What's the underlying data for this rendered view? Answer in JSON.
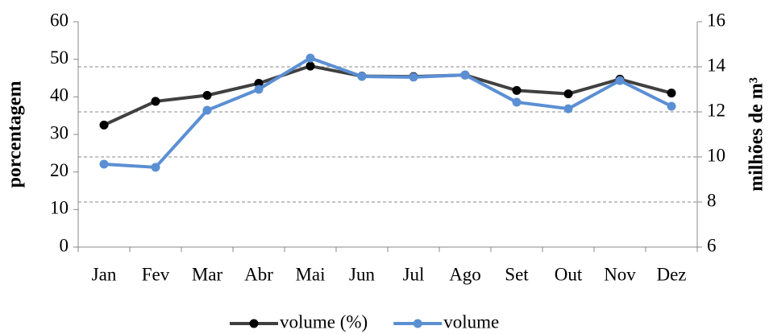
{
  "chart_data": {
    "type": "line",
    "categories": [
      "Jan",
      "Fev",
      "Mar",
      "Abr",
      "Mai",
      "Jun",
      "Jul",
      "Ago",
      "Set",
      "Out",
      "Nov",
      "Dez"
    ],
    "ylabel": "porcentagem",
    "y2label": "milhões de m³",
    "ylim": [
      0,
      60
    ],
    "yticks": [
      0,
      10,
      20,
      30,
      40,
      50,
      60
    ],
    "y2lim": [
      6,
      16
    ],
    "y2ticks": [
      6,
      8,
      10,
      12,
      14,
      16
    ],
    "grid": "y2",
    "legend": "bottom",
    "series": [
      {
        "name": "volume (%)",
        "color": "#404040",
        "marker_color": "#000000",
        "values": [
          32.5,
          38.8,
          40.4,
          43.6,
          48.2,
          45.5,
          45.4,
          45.8,
          41.7,
          40.8,
          44.7,
          41.0
        ]
      },
      {
        "name": "volume",
        "color": "#5b8fd4",
        "marker_color": "#5b8fd4",
        "axis": "y2",
        "values": [
          9.68,
          9.54,
          12.07,
          13.0,
          14.39,
          13.57,
          13.54,
          13.64,
          12.43,
          12.14,
          13.39,
          12.25
        ]
      }
    ]
  }
}
